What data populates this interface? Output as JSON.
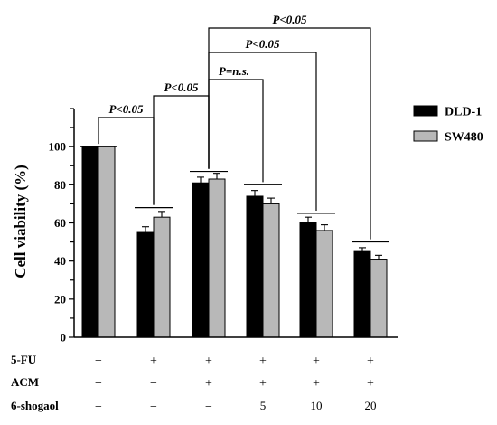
{
  "chart_data": {
    "type": "bar",
    "ylabel": "Cell viability (%)",
    "ylim": [
      0,
      120
    ],
    "yticks": [
      0,
      20,
      40,
      60,
      80,
      100
    ],
    "legend_position": "top-right",
    "series": [
      {
        "name": "DLD-1",
        "color": "#000000",
        "values": [
          100,
          55,
          81,
          74,
          60,
          45
        ],
        "errors": [
          0,
          3,
          3,
          3,
          3,
          2
        ]
      },
      {
        "name": "SW480",
        "color": "#b8b8b8",
        "values": [
          100,
          63,
          83,
          70,
          56,
          41
        ],
        "errors": [
          0,
          3,
          3,
          3,
          3,
          2
        ]
      }
    ],
    "group_lines": [
      100,
      68,
      87,
      80,
      65,
      50
    ],
    "treatments": [
      {
        "label": "5-FU",
        "values": [
          "−",
          "+",
          "+",
          "+",
          "+",
          "+"
        ]
      },
      {
        "label": "ACM",
        "values": [
          "−",
          "−",
          "+",
          "+",
          "+",
          "+"
        ]
      },
      {
        "label": "6-shogaol",
        "values": [
          "−",
          "−",
          "−",
          "5",
          "10",
          "20"
        ]
      }
    ],
    "comparisons": [
      {
        "from": 0,
        "to": 1,
        "label": "P<0.05"
      },
      {
        "from": 1,
        "to": 2,
        "label": "P<0.05"
      },
      {
        "from": 2,
        "to": 3,
        "label": "P=n.s."
      },
      {
        "from": 2,
        "to": 4,
        "label": "P<0.05"
      },
      {
        "from": 2,
        "to": 5,
        "label": "P<0.05"
      }
    ]
  }
}
